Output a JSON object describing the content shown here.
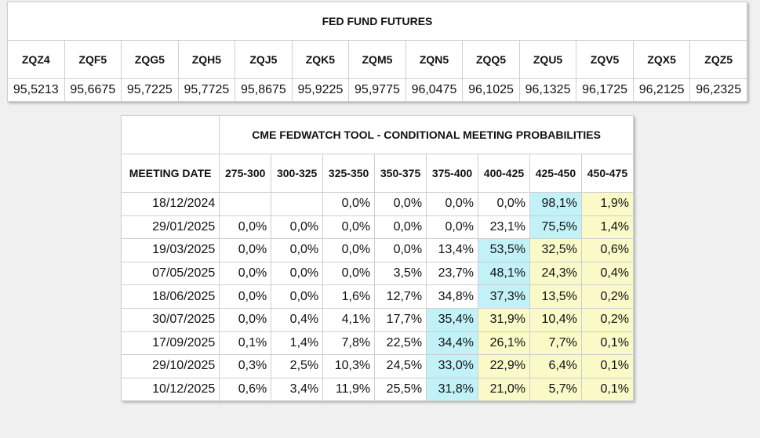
{
  "futures": {
    "title": "FED FUND FUTURES",
    "contracts": [
      {
        "code": "ZQZ4",
        "price": "95,5213"
      },
      {
        "code": "ZQF5",
        "price": "95,6675"
      },
      {
        "code": "ZQG5",
        "price": "95,7225"
      },
      {
        "code": "ZQH5",
        "price": "95,7725"
      },
      {
        "code": "ZQJ5",
        "price": "95,8675"
      },
      {
        "code": "ZQK5",
        "price": "95,9225"
      },
      {
        "code": "ZQM5",
        "price": "95,9775"
      },
      {
        "code": "ZQN5",
        "price": "96,0475"
      },
      {
        "code": "ZQQ5",
        "price": "96,1025"
      },
      {
        "code": "ZQU5",
        "price": "96,1325"
      },
      {
        "code": "ZQV5",
        "price": "96,1725"
      },
      {
        "code": "ZQX5",
        "price": "96,2125"
      },
      {
        "code": "ZQZ5",
        "price": "96,2325"
      }
    ]
  },
  "fedwatch": {
    "title": "CME FEDWATCH TOOL - CONDITIONAL MEETING PROBABILITIES",
    "date_header": "MEETING DATE",
    "ranges": [
      "275-300",
      "300-325",
      "325-350",
      "350-375",
      "375-400",
      "400-425",
      "425-450",
      "450-475"
    ],
    "rows": [
      {
        "date": "18/12/2024",
        "values": [
          "",
          "",
          "0,0%",
          "0,0%",
          "0,0%",
          "0,0%",
          "98,1%",
          "1,9%"
        ]
      },
      {
        "date": "29/01/2025",
        "values": [
          "0,0%",
          "0,0%",
          "0,0%",
          "0,0%",
          "0,0%",
          "23,1%",
          "75,5%",
          "1,4%"
        ]
      },
      {
        "date": "19/03/2025",
        "values": [
          "0,0%",
          "0,0%",
          "0,0%",
          "0,0%",
          "13,4%",
          "53,5%",
          "32,5%",
          "0,6%"
        ]
      },
      {
        "date": "07/05/2025",
        "values": [
          "0,0%",
          "0,0%",
          "0,0%",
          "3,5%",
          "23,7%",
          "48,1%",
          "24,3%",
          "0,4%"
        ]
      },
      {
        "date": "18/06/2025",
        "values": [
          "0,0%",
          "0,0%",
          "1,6%",
          "12,7%",
          "34,8%",
          "37,3%",
          "13,5%",
          "0,2%"
        ]
      },
      {
        "date": "30/07/2025",
        "values": [
          "0,0%",
          "0,4%",
          "4,1%",
          "17,7%",
          "35,4%",
          "31,9%",
          "10,4%",
          "0,2%"
        ]
      },
      {
        "date": "17/09/2025",
        "values": [
          "0,1%",
          "1,4%",
          "7,8%",
          "22,5%",
          "34,4%",
          "26,1%",
          "7,7%",
          "0,1%"
        ]
      },
      {
        "date": "29/10/2025",
        "values": [
          "0,3%",
          "2,5%",
          "10,3%",
          "24,5%",
          "33,0%",
          "22,9%",
          "6,4%",
          "0,1%"
        ]
      },
      {
        "date": "10/12/2025",
        "values": [
          "0,6%",
          "3,4%",
          "11,9%",
          "25,5%",
          "31,8%",
          "21,0%",
          "5,7%",
          "0,1%"
        ]
      }
    ]
  },
  "colors": {
    "highest_probability": "#c2f2f7",
    "current_rate_range": "#fafac8"
  }
}
